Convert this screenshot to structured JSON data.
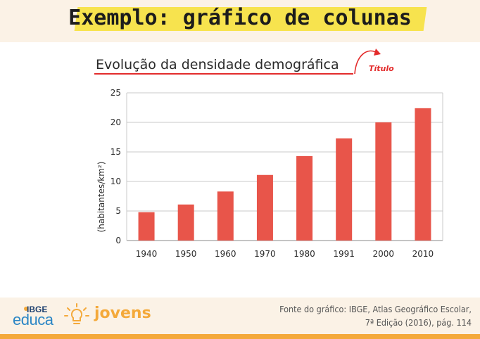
{
  "header": {
    "title": "Exemplo: gráfico de colunas"
  },
  "annotation": {
    "label": "Título",
    "color": "#e32b2b"
  },
  "chart_data": {
    "type": "bar",
    "title": "Evolução da densidade demográfica",
    "xlabel": "",
    "ylabel": "(habitantes/km²)",
    "categories": [
      "1940",
      "1950",
      "1960",
      "1970",
      "1980",
      "1991",
      "2000",
      "2010"
    ],
    "values": [
      4.8,
      6.1,
      8.3,
      11.1,
      14.3,
      17.3,
      20.0,
      22.4
    ],
    "ylim": [
      0,
      25
    ],
    "yticks": [
      0,
      5,
      10,
      15,
      20,
      25
    ],
    "grid": true,
    "bar_color": "#e8554a"
  },
  "footer": {
    "logo_ibge": "IBGE",
    "logo_educa": "educa",
    "logo_jovens": "jovens",
    "source_label": "Fonte do gráfico:",
    "source_line1": "IBGE, Atlas Geográfico Escolar,",
    "source_line2": "7ª Edição (2016), pág. 114"
  }
}
